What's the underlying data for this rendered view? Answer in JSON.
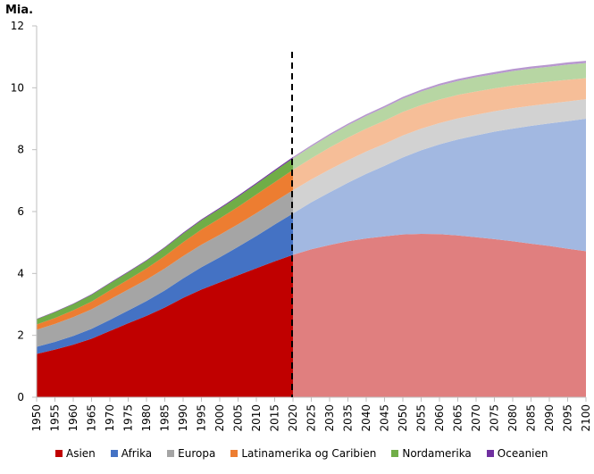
{
  "chart_data": {
    "type": "area",
    "stacked": true,
    "unit_label": "Mia.",
    "ylim": [
      0,
      12
    ],
    "yticks": [
      "0",
      "2",
      "4",
      "6",
      "8",
      "10",
      "12"
    ],
    "x": [
      1950,
      1955,
      1960,
      1965,
      1970,
      1975,
      1980,
      1985,
      1990,
      1995,
      2000,
      2005,
      2010,
      2015,
      2020,
      2025,
      2030,
      2035,
      2040,
      2045,
      2050,
      2055,
      2060,
      2065,
      2070,
      2075,
      2080,
      2085,
      2090,
      2095,
      2100
    ],
    "xticks": [
      "1950",
      "1955",
      "1960",
      "1965",
      "1970",
      "1975",
      "1980",
      "1985",
      "1990",
      "1995",
      "2000",
      "2005",
      "2010",
      "2015",
      "2020",
      "2025",
      "2030",
      "2035",
      "2040",
      "2045",
      "2050",
      "2055",
      "2060",
      "2065",
      "2070",
      "2075",
      "2080",
      "2085",
      "2090",
      "2095",
      "2100"
    ],
    "projection_start": 2020,
    "series": [
      {
        "name": "Asien",
        "color": "#c00000",
        "projected_color": "#e07f7f",
        "values": [
          1.4,
          1.54,
          1.7,
          1.89,
          2.14,
          2.39,
          2.63,
          2.9,
          3.21,
          3.48,
          3.71,
          3.94,
          4.17,
          4.39,
          4.6,
          4.78,
          4.92,
          5.04,
          5.13,
          5.2,
          5.26,
          5.28,
          5.27,
          5.23,
          5.17,
          5.11,
          5.04,
          4.96,
          4.89,
          4.8,
          4.72
        ]
      },
      {
        "name": "Afrika",
        "color": "#4472c4",
        "projected_color": "#a2b8e1",
        "values": [
          0.23,
          0.25,
          0.28,
          0.32,
          0.36,
          0.41,
          0.48,
          0.55,
          0.63,
          0.72,
          0.81,
          0.92,
          1.04,
          1.19,
          1.34,
          1.52,
          1.7,
          1.89,
          2.09,
          2.28,
          2.49,
          2.7,
          2.9,
          3.1,
          3.29,
          3.47,
          3.64,
          3.81,
          3.96,
          4.12,
          4.28
        ]
      },
      {
        "name": "Europa",
        "color": "#a5a5a5",
        "projected_color": "#d2d2d2",
        "values": [
          0.55,
          0.58,
          0.61,
          0.63,
          0.66,
          0.68,
          0.69,
          0.71,
          0.72,
          0.73,
          0.73,
          0.73,
          0.74,
          0.74,
          0.75,
          0.74,
          0.74,
          0.73,
          0.72,
          0.71,
          0.71,
          0.7,
          0.69,
          0.68,
          0.67,
          0.66,
          0.66,
          0.65,
          0.64,
          0.64,
          0.63
        ]
      },
      {
        "name": "Latinamerika og Caribien",
        "color": "#ed7d31",
        "projected_color": "#f6be98",
        "values": [
          0.17,
          0.19,
          0.22,
          0.25,
          0.29,
          0.32,
          0.36,
          0.4,
          0.45,
          0.49,
          0.53,
          0.56,
          0.6,
          0.63,
          0.66,
          0.68,
          0.71,
          0.73,
          0.74,
          0.75,
          0.76,
          0.76,
          0.76,
          0.76,
          0.75,
          0.74,
          0.73,
          0.72,
          0.71,
          0.7,
          0.68
        ]
      },
      {
        "name": "Nordamerika",
        "color": "#70ad47",
        "projected_color": "#b7d6a3",
        "values": [
          0.17,
          0.19,
          0.2,
          0.22,
          0.23,
          0.24,
          0.25,
          0.27,
          0.28,
          0.3,
          0.31,
          0.33,
          0.34,
          0.36,
          0.37,
          0.38,
          0.39,
          0.4,
          0.41,
          0.42,
          0.43,
          0.44,
          0.45,
          0.45,
          0.46,
          0.46,
          0.47,
          0.48,
          0.48,
          0.49,
          0.49
        ]
      },
      {
        "name": "Oceanien",
        "color": "#7030a0",
        "projected_color": "#b797cf",
        "values": [
          0.013,
          0.014,
          0.016,
          0.018,
          0.02,
          0.021,
          0.023,
          0.025,
          0.027,
          0.029,
          0.031,
          0.034,
          0.037,
          0.04,
          0.043,
          0.046,
          0.048,
          0.051,
          0.053,
          0.055,
          0.057,
          0.059,
          0.061,
          0.063,
          0.064,
          0.066,
          0.067,
          0.068,
          0.07,
          0.071,
          0.072
        ]
      }
    ],
    "title": "",
    "xlabel": "",
    "ylabel": "Mia.",
    "grid": false,
    "legend_position": "bottom"
  }
}
